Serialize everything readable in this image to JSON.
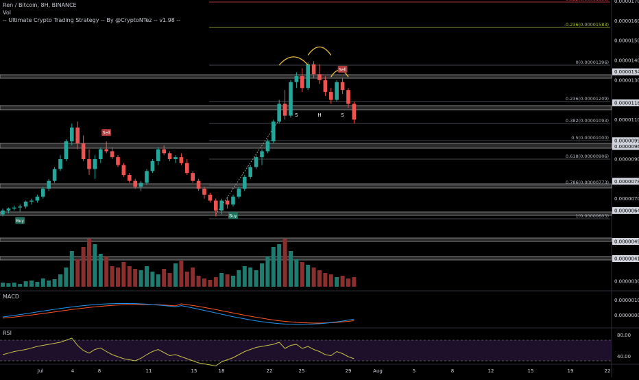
{
  "header": {
    "symbol": "Ren / Bitcoin, 8H, BINANCE",
    "vol_label": "Vol",
    "strategy": "-- Ultimate Crypto Trading Strategy -- By @CryptoNTez -- v1.98 --"
  },
  "panes": {
    "macd_label": "MACD",
    "rsi_label": "RSI"
  },
  "price_axis": {
    "ticks": [
      {
        "label": "0.00001700",
        "v": 1.7e-05
      },
      {
        "label": "0.00001600",
        "v": 1.6e-05
      },
      {
        "label": "0.00001500",
        "v": 1.5e-05
      },
      {
        "label": "0.00001400",
        "v": 1.4e-05
      },
      {
        "label": "0.00001300",
        "v": 1.3e-05
      },
      {
        "label": "0.00001100",
        "v": 1.1e-05
      },
      {
        "label": "0.00000900",
        "v": 9e-06
      },
      {
        "label": "0.00000700",
        "v": 7e-06
      }
    ],
    "zone_labels": [
      {
        "label": "0.00001342",
        "v": 1.342e-05
      },
      {
        "label": "0.00001185",
        "v": 1.185e-05
      },
      {
        "label": "0.00000993",
        "v": 9.93e-06
      },
      {
        "label": "0.00000964",
        "v": 9.64e-06
      },
      {
        "label": "0.00000788",
        "v": 7.88e-06
      },
      {
        "label": "0.00000640",
        "v": 6.4e-06
      }
    ],
    "lower_labels": [
      {
        "label": "0.00000496",
        "y": 352
      },
      {
        "label": "0.00000410",
        "y": 377
      },
      {
        "label": "0.00000300",
        "y": 410
      }
    ]
  },
  "macd_axis": [
    "0.00000100",
    "0.00000000"
  ],
  "rsi_axis": [
    "80.00",
    "40.00"
  ],
  "fib_levels": [
    {
      "ratio": -0.382,
      "label": "-0.382(0.00001699)",
      "color": "#e0454d"
    },
    {
      "ratio": -0.236,
      "label": "-0.236(0.00001583)",
      "color": "#a9c338"
    },
    {
      "ratio": 0,
      "label": "0(0.00001396)",
      "color": "#b2b5be"
    },
    {
      "ratio": 0.236,
      "label": "0.236(0.00001209)",
      "color": "#b2b5be"
    },
    {
      "ratio": 0.382,
      "label": "0.382(0.00001093)",
      "color": "#b2b5be"
    },
    {
      "ratio": 0.5,
      "label": "0.5(0.00001000)",
      "color": "#b2b5be"
    },
    {
      "ratio": 0.618,
      "label": "0.618(0.00000906)",
      "color": "#b2b5be"
    },
    {
      "ratio": 0.786,
      "label": "0.786(0.00000773)",
      "color": "#b2b5be"
    },
    {
      "ratio": 1,
      "label": "1(0.00000603)",
      "color": "#b2b5be"
    }
  ],
  "fib_values": [
    1.699e-05,
    1.583e-05,
    1.396e-05,
    1.209e-05,
    1.093e-05,
    1e-05,
    9.06e-06,
    7.73e-06,
    6.03e-06
  ],
  "markers": [
    {
      "text": "Buy",
      "type": "buy",
      "bar": 3
    },
    {
      "text": "Sell",
      "type": "sell",
      "bar": 18
    },
    {
      "text": "Buy",
      "type": "buy",
      "bar": 40
    },
    {
      "text": "Sell",
      "type": "sell",
      "bar": 59
    }
  ],
  "pattern_labels": [
    "S",
    "H",
    "S"
  ],
  "time_axis": [
    "Jul",
    "4",
    "8",
    "11",
    "15",
    "18",
    "22",
    "25",
    "29",
    "Aug",
    "5",
    "8",
    "12",
    "15",
    "19",
    "22"
  ],
  "colors": {
    "up": "#26a69a",
    "down": "#ef5350",
    "vol_up": "#1f7a6f",
    "vol_down": "#8a2e2e",
    "macd": "#2196f3",
    "signal": "#ff5722",
    "rsi": "#c9c14a",
    "rsi_band": "#1e0f2a",
    "arc": "#f4c542",
    "fib_line": "#5d606b"
  },
  "chart_data": {
    "type": "candlestick",
    "series": [
      {
        "name": "Ren / Bitcoin, 8H, BINANCE",
        "ohlc": [
          [
            6.2e-06,
            6.5e-06,
            6.1e-06,
            6.4e-06
          ],
          [
            6.4e-06,
            6.55e-06,
            6.25e-06,
            6.5e-06
          ],
          [
            6.5e-06,
            6.65e-06,
            6.4e-06,
            6.55e-06
          ],
          [
            6.55e-06,
            6.7e-06,
            6.35e-06,
            6.6e-06
          ],
          [
            6.6e-06,
            6.9e-06,
            6.5e-06,
            6.85e-06
          ],
          [
            6.85e-06,
            7e-06,
            6.7e-06,
            6.9e-06
          ],
          [
            6.9e-06,
            7.2e-06,
            6.8e-06,
            7.1e-06
          ],
          [
            7.1e-06,
            7.6e-06,
            7e-06,
            7.5e-06
          ],
          [
            7.5e-06,
            8e-06,
            7.4e-06,
            7.9e-06
          ],
          [
            7.9e-06,
            8.6e-06,
            7.8e-06,
            8.5e-06
          ],
          [
            8.5e-06,
            9.2e-06,
            8.4e-06,
            9e-06
          ],
          [
            9e-06,
            1e-05,
            8.9e-06,
            9.9e-06
          ],
          [
            9.9e-06,
            1.08e-05,
            9.7e-06,
            1.06e-05
          ],
          [
            1.06e-05,
            1.09e-05,
            9.5e-06,
            9.8e-06
          ],
          [
            9.8e-06,
            1.02e-05,
            8.9e-06,
            9e-06
          ],
          [
            9e-06,
            9.5e-06,
            8.2e-06,
            8.5e-06
          ],
          [
            8.5e-06,
            9.2e-06,
            8e-06,
            9e-06
          ],
          [
            9e-06,
            9.6e-06,
            8.8e-06,
            9.5e-06
          ],
          [
            9.5e-06,
            9.9e-06,
            9.3e-06,
            9.4e-06
          ],
          [
            9.4e-06,
            9.6e-06,
            9e-06,
            9.1e-06
          ],
          [
            9.1e-06,
            9.2e-06,
            8.6e-06,
            8.7e-06
          ],
          [
            8.7e-06,
            8.8e-06,
            8.1e-06,
            8.2e-06
          ],
          [
            8.2e-06,
            8.3e-06,
            7.8e-06,
            7.9e-06
          ],
          [
            7.9e-06,
            8e-06,
            7.5e-06,
            7.6e-06
          ],
          [
            7.6e-06,
            7.9e-06,
            7.4e-06,
            7.8e-06
          ],
          [
            7.8e-06,
            8.5e-06,
            7.7e-06,
            8.4e-06
          ],
          [
            8.4e-06,
            9e-06,
            8.3e-06,
            8.9e-06
          ],
          [
            8.9e-06,
            9.6e-06,
            8.7e-06,
            9.5e-06
          ],
          [
            9.5e-06,
            9.7e-06,
            9.2e-06,
            9.3e-06
          ],
          [
            9.3e-06,
            9.4e-06,
            8.9e-06,
            9e-06
          ],
          [
            9e-06,
            9.2e-06,
            8.8e-06,
            9.1e-06
          ],
          [
            9.1e-06,
            9.3e-06,
            8.7e-06,
            8.8e-06
          ],
          [
            8.8e-06,
            9e-06,
            8.2e-06,
            8.3e-06
          ],
          [
            8.3e-06,
            8.4e-06,
            7.8e-06,
            7.9e-06
          ],
          [
            7.9e-06,
            8e-06,
            7.4e-06,
            7.5e-06
          ],
          [
            7.5e-06,
            7.6e-06,
            7e-06,
            7.2e-06
          ],
          [
            7.2e-06,
            7.3e-06,
            6.8e-06,
            6.9e-06
          ],
          [
            6.9e-06,
            7e-06,
            6.1e-06,
            6.4e-06
          ],
          [
            6.4e-06,
            7e-06,
            6.2e-06,
            6.9e-06
          ],
          [
            6.9e-06,
            7.1e-06,
            6.5e-06,
            6.7e-06
          ],
          [
            6.7e-06,
            7.2e-06,
            6.6e-06,
            7.1e-06
          ],
          [
            7.1e-06,
            7.6e-06,
            7e-06,
            7.5e-06
          ],
          [
            7.5e-06,
            8.2e-06,
            7.4e-06,
            8.1e-06
          ],
          [
            8.1e-06,
            8.7e-06,
            8e-06,
            8.6e-06
          ],
          [
            8.6e-06,
            9.2e-06,
            8.5e-06,
            9.1e-06
          ],
          [
            9.1e-06,
            9.5e-06,
            8.7e-06,
            9.4e-06
          ],
          [
            9.4e-06,
            1e-05,
            9.3e-06,
            9.9e-06
          ],
          [
            9.9e-06,
            1.1e-05,
            9.8e-06,
            1.09e-05
          ],
          [
            1.09e-05,
            1.2e-05,
            1.08e-05,
            1.18e-05
          ],
          [
            1.18e-05,
            1.25e-05,
            1.1e-05,
            1.12e-05
          ],
          [
            1.12e-05,
            1.3e-05,
            1.11e-05,
            1.29e-05
          ],
          [
            1.29e-05,
            1.34e-05,
            1.26e-05,
            1.32e-05
          ],
          [
            1.32e-05,
            1.36e-05,
            1.24e-05,
            1.26e-05
          ],
          [
            1.26e-05,
            1.39e-05,
            1.25e-05,
            1.38e-05
          ],
          [
            1.38e-05,
            1.396e-05,
            1.31e-05,
            1.33e-05
          ],
          [
            1.33e-05,
            1.38e-05,
            1.28e-05,
            1.3e-05
          ],
          [
            1.3e-05,
            1.32e-05,
            1.22e-05,
            1.24e-05
          ],
          [
            1.24e-05,
            1.26e-05,
            1.18e-05,
            1.2e-05
          ],
          [
            1.2e-05,
            1.3e-05,
            1.19e-05,
            1.29e-05
          ],
          [
            1.29e-05,
            1.31e-05,
            1.23e-05,
            1.25e-05
          ],
          [
            1.25e-05,
            1.26e-05,
            1.16e-05,
            1.18e-05
          ],
          [
            1.18e-05,
            1.19e-05,
            1.08e-05,
            1.1e-05
          ]
        ]
      }
    ],
    "ylim": [
      2.8e-06,
      1.72e-05
    ]
  }
}
